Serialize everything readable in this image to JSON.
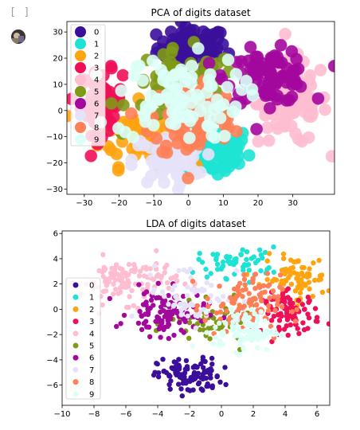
{
  "notebook": {
    "cell_prompt": "[ ]"
  },
  "chart_data": [
    {
      "type": "scatter",
      "title": "PCA of digits dataset",
      "xlabel": "",
      "ylabel": "",
      "xlim": [
        -35,
        42
      ],
      "ylim": [
        -32,
        34
      ],
      "xticks": [
        -30,
        -20,
        -10,
        0,
        10,
        20,
        30
      ],
      "yticks": [
        -30,
        -20,
        -10,
        0,
        10,
        20,
        30
      ],
      "grid": false,
      "legend": "upper-left",
      "marker": "large",
      "series": [
        {
          "name": "0",
          "color": "#3b0f9a",
          "center": [
            1,
            24
          ],
          "spread": [
            5,
            4
          ],
          "n": 90
        },
        {
          "name": "1",
          "color": "#1ee3d4",
          "center": [
            8,
            -16
          ],
          "spread": [
            5,
            5
          ],
          "n": 70
        },
        {
          "name": "2",
          "color": "#ffa30f",
          "center": [
            -14,
            -9
          ],
          "spread": [
            6,
            6
          ],
          "n": 70
        },
        {
          "name": "3",
          "color": "#ef0f57",
          "center": [
            -25,
            3
          ],
          "spread": [
            3,
            6
          ],
          "n": 70
        },
        {
          "name": "4",
          "color": "#ffbdd0",
          "center": [
            30,
            3
          ],
          "spread": [
            5,
            8
          ],
          "n": 90
        },
        {
          "name": "5",
          "color": "#7f9a17",
          "center": [
            -1,
            9
          ],
          "spread": [
            8,
            7
          ],
          "n": 70
        },
        {
          "name": "6",
          "color": "#a3089d",
          "center": [
            23,
            13
          ],
          "spread": [
            6,
            5
          ],
          "n": 90
        },
        {
          "name": "7",
          "color": "#e6e2fa",
          "center": [
            -6,
            -19
          ],
          "spread": [
            5,
            5
          ],
          "n": 60
        },
        {
          "name": "8",
          "color": "#ff7f57",
          "center": [
            1,
            -3
          ],
          "spread": [
            6,
            8
          ],
          "n": 90
        },
        {
          "name": "9",
          "color": "#dcfff7",
          "center": [
            -3,
            5
          ],
          "spread": [
            9,
            8
          ],
          "n": 90
        }
      ]
    },
    {
      "type": "scatter",
      "title": "LDA of digits dataset",
      "xlabel": "",
      "ylabel": "",
      "xlim": [
        -10,
        6.8
      ],
      "ylim": [
        -7.6,
        6.2
      ],
      "xticks": [
        -10,
        -8,
        -6,
        -4,
        -2,
        0,
        2,
        4,
        6
      ],
      "yticks": [
        -6,
        -4,
        -2,
        0,
        2,
        4,
        6
      ],
      "grid": false,
      "legend": "lower-left",
      "marker": "small",
      "series": [
        {
          "name": "0",
          "color": "#3b0f9a",
          "center": [
            -2,
            -5.3
          ],
          "spread": [
            1.0,
            0.7
          ],
          "n": 110
        },
        {
          "name": "1",
          "color": "#1ee3d4",
          "center": [
            1.1,
            3.7
          ],
          "spread": [
            1.3,
            0.6
          ],
          "n": 60
        },
        {
          "name": "2",
          "color": "#ffa30f",
          "center": [
            4.6,
            2.4
          ],
          "spread": [
            1.0,
            0.9
          ],
          "n": 80
        },
        {
          "name": "3",
          "color": "#ef0f57",
          "center": [
            4.4,
            -0.3
          ],
          "spread": [
            0.9,
            0.8
          ],
          "n": 90
        },
        {
          "name": "4",
          "color": "#ffbdd0",
          "center": [
            -5.8,
            2.3
          ],
          "spread": [
            1.5,
            0.9
          ],
          "n": 120
        },
        {
          "name": "5",
          "color": "#7f9a17",
          "center": [
            -0.4,
            -1.2
          ],
          "spread": [
            1.4,
            0.8
          ],
          "n": 60
        },
        {
          "name": "6",
          "color": "#a3089d",
          "center": [
            -3.4,
            -0.3
          ],
          "spread": [
            1.2,
            0.9
          ],
          "n": 110
        },
        {
          "name": "7",
          "color": "#e6e2fa",
          "center": [
            -1.8,
            1.3
          ],
          "spread": [
            1.5,
            1.2
          ],
          "n": 60
        },
        {
          "name": "8",
          "color": "#ff7f57",
          "center": [
            1.3,
            0.3
          ],
          "spread": [
            1.2,
            1.2
          ],
          "n": 110
        },
        {
          "name": "9",
          "color": "#dcfff7",
          "center": [
            1.5,
            -1.7
          ],
          "spread": [
            1.0,
            0.8
          ],
          "n": 90
        }
      ]
    }
  ]
}
